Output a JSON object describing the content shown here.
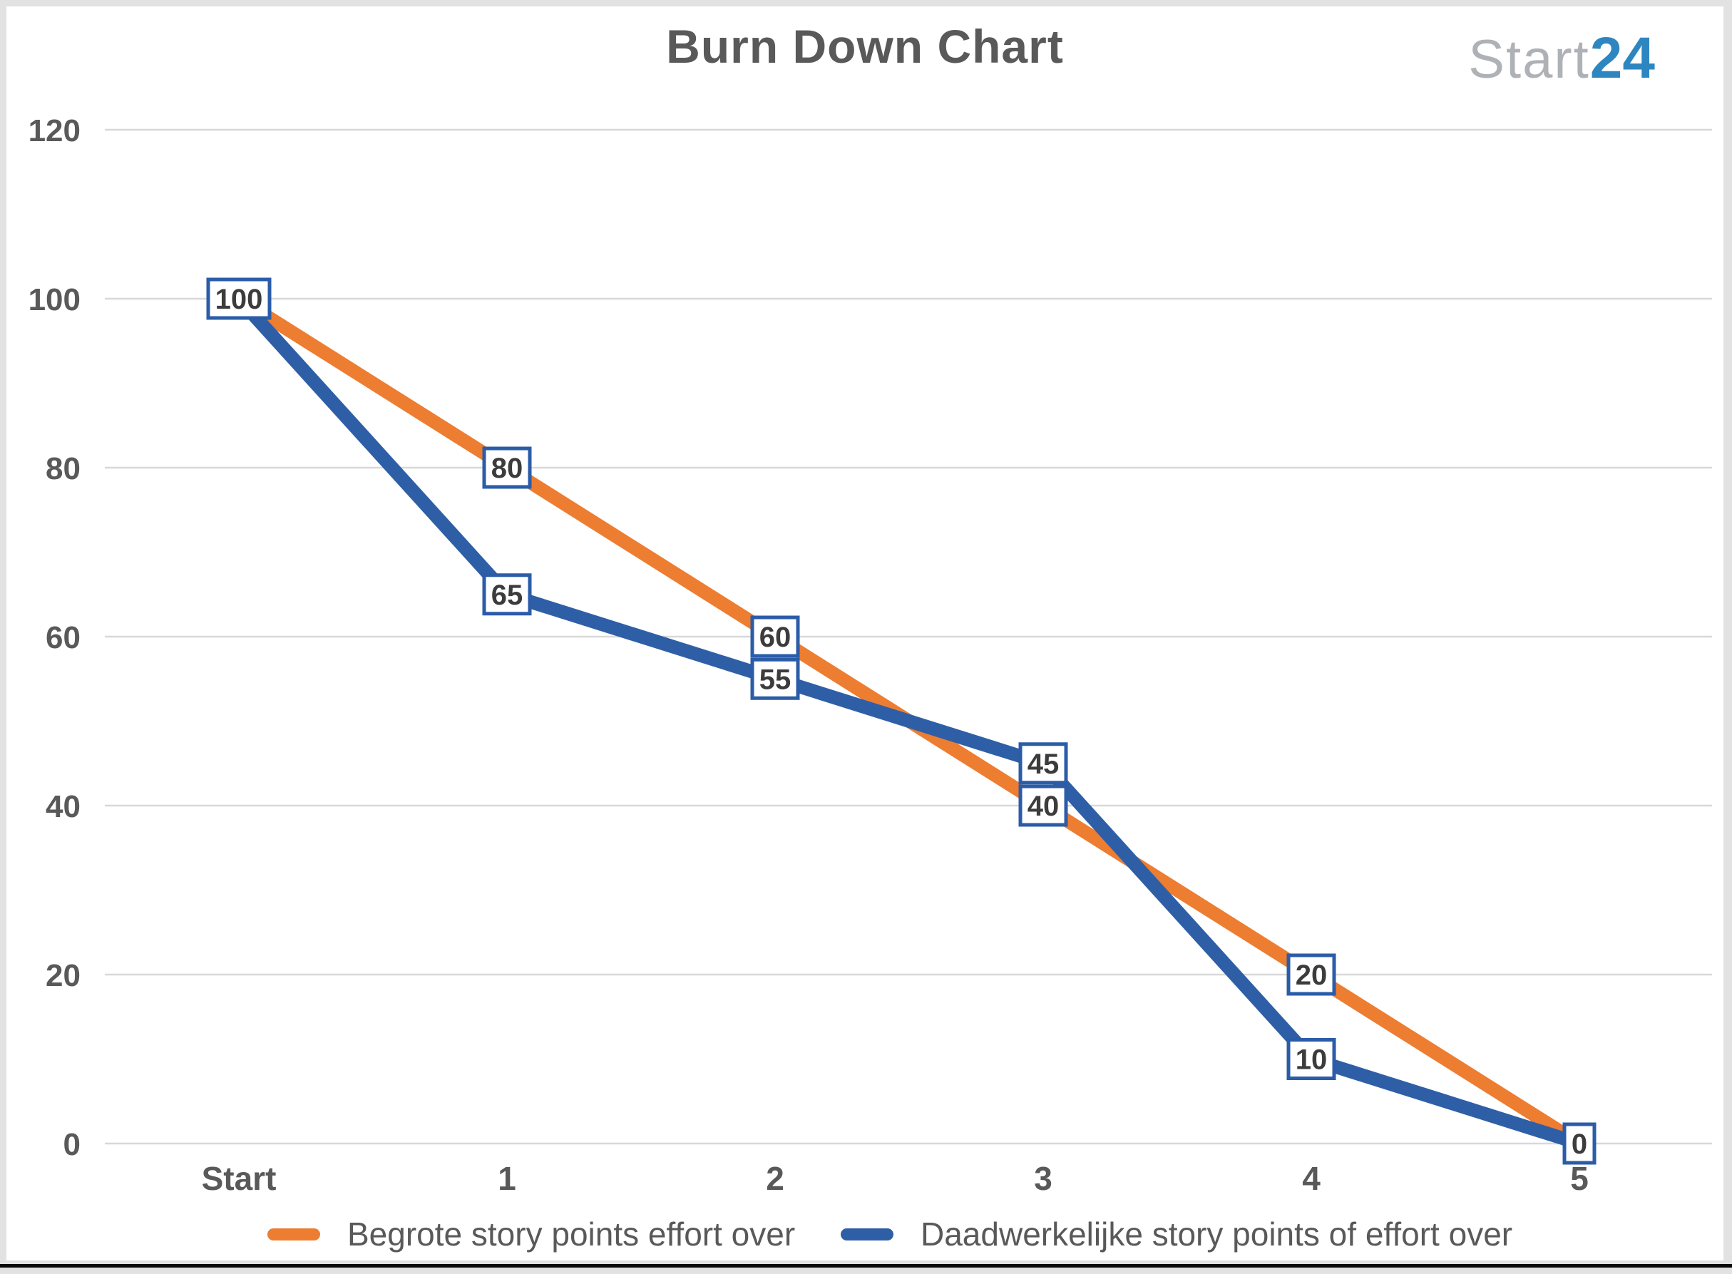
{
  "title": "Burn Down Chart",
  "logo": {
    "gray_text": "Start",
    "blue_text": "24"
  },
  "colors": {
    "title_text": "#595959",
    "axis_text": "#595959",
    "legend_text": "#595959",
    "gridline": "#d8d8d8",
    "logo_gray": "#aeb2b6",
    "logo_blue": "#2e86c1",
    "label_box_fill": "#ffffff",
    "label_box_border": "#2b5ca8",
    "label_box_text": "#3c3c3c",
    "series_orange": "#ED7D31",
    "series_blue": "#2E5FA6"
  },
  "chart_data": {
    "type": "line",
    "title": "Burn Down Chart",
    "xlabel": "",
    "ylabel": "",
    "categories": [
      "Start",
      "1",
      "2",
      "3",
      "4",
      "5"
    ],
    "series": [
      {
        "name": "Begrote story points effort over",
        "color": "#ED7D31",
        "values": [
          100,
          80,
          60,
          40,
          20,
          0
        ]
      },
      {
        "name": "Daadwerkelijke story points of effort over",
        "color": "#2E5FA6",
        "values": [
          100,
          65,
          55,
          45,
          10,
          0
        ]
      }
    ],
    "ylim": [
      0,
      120
    ],
    "y_ticks": [
      120,
      100,
      80,
      60,
      40,
      20,
      0
    ],
    "grid": "horizontal",
    "legend_position": "bottom",
    "data_labels_boxed": true
  }
}
